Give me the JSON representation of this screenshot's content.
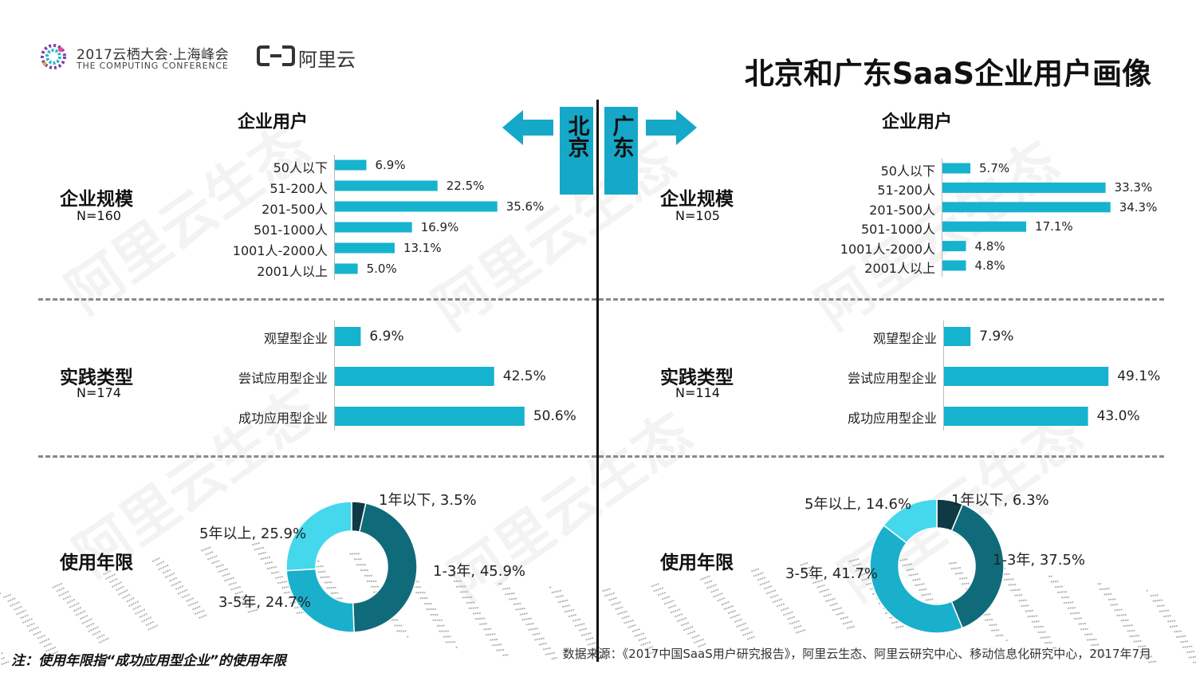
{
  "header": {
    "conf_title": "2017云栖大会·上海峰会",
    "conf_subtitle": "THE COMPUTING CONFERENCE",
    "brand": "阿里云",
    "title": "北京和广东SaaS企业用户画像"
  },
  "columns": {
    "left_heading": "企业用户",
    "right_heading": "企业用户",
    "left_city": "北京",
    "right_city": "广东"
  },
  "sections": {
    "scale": {
      "label": "企业规模",
      "left_n": "N=160",
      "right_n": "N=105"
    },
    "practice": {
      "label": "实践类型",
      "left_n": "N=174",
      "right_n": "N=114"
    },
    "years": {
      "label": "使用年限"
    }
  },
  "colors": {
    "bar": "#16b3cf",
    "city_badge": "#16a8c8",
    "pie": [
      "#0f3a45",
      "#0f6b7a",
      "#1ab0cc",
      "#45d7ec"
    ]
  },
  "chart_data": [
    {
      "type": "bar",
      "orientation": "horizontal",
      "region": "北京",
      "title": "企业规模",
      "sample": "N=160",
      "categories": [
        "50人以下",
        "51-200人",
        "201-500人",
        "501-1000人",
        "1001人-2000人",
        "2001人以上"
      ],
      "values": [
        6.9,
        22.5,
        35.6,
        16.9,
        13.1,
        5.0
      ],
      "labels": [
        "6.9%",
        "22.5%",
        "35.6%",
        "16.9%",
        "13.1%",
        "5.0%"
      ],
      "xlim": [
        0,
        36
      ]
    },
    {
      "type": "bar",
      "orientation": "horizontal",
      "region": "广东",
      "title": "企业规模",
      "sample": "N=105",
      "categories": [
        "50人以下",
        "51-200人",
        "201-500人",
        "501-1000人",
        "1001人-2000人",
        "2001人以上"
      ],
      "values": [
        5.7,
        33.3,
        34.3,
        17.1,
        4.8,
        4.8
      ],
      "labels": [
        "5.7%",
        "33.3%",
        "34.3%",
        "17.1%",
        "4.8%",
        "4.8%"
      ],
      "xlim": [
        0,
        35
      ]
    },
    {
      "type": "bar",
      "orientation": "horizontal",
      "region": "北京",
      "title": "实践类型",
      "sample": "N=174",
      "categories": [
        "观望型企业",
        "尝试应用型企业",
        "成功应用型企业"
      ],
      "values": [
        6.9,
        42.5,
        50.6
      ],
      "labels": [
        "6.9%",
        "42.5%",
        "50.6%"
      ],
      "xlim": [
        0,
        60
      ]
    },
    {
      "type": "bar",
      "orientation": "horizontal",
      "region": "广东",
      "title": "实践类型",
      "sample": "N=114",
      "categories": [
        "观望型企业",
        "尝试应用型企业",
        "成功应用型企业"
      ],
      "values": [
        7.9,
        49.1,
        43.0
      ],
      "labels": [
        "7.9%",
        "49.1%",
        "43.0%"
      ],
      "xlim": [
        0,
        60
      ]
    },
    {
      "type": "pie",
      "donut": true,
      "region": "北京",
      "title": "使用年限",
      "categories": [
        "1年以下",
        "1-3年",
        "3-5年",
        "5年以上"
      ],
      "values": [
        3.5,
        45.9,
        24.7,
        25.9
      ],
      "labels": [
        "1年以下, 3.5%",
        "1-3年, 45.9%",
        "3-5年, 24.7%",
        "5年以上, 25.9%"
      ]
    },
    {
      "type": "pie",
      "donut": true,
      "region": "广东",
      "title": "使用年限",
      "categories": [
        "1年以下",
        "1-3年",
        "3-5年",
        "5年以上"
      ],
      "values": [
        6.3,
        37.5,
        41.7,
        14.6
      ],
      "labels": [
        "1年以下, 6.3%",
        "1-3年, 37.5%",
        "3-5年, 41.7%",
        "5年以上, 14.6%"
      ]
    }
  ],
  "footer": {
    "note": "注：使用年限指“成功应用型企业”的使用年限",
    "source": "数据来源：《2017中国SaaS用户研究报告》，阿里云生态、阿里云研究中心、移动信息化研究中心，2017年7月"
  },
  "watermark": "阿里云生态"
}
